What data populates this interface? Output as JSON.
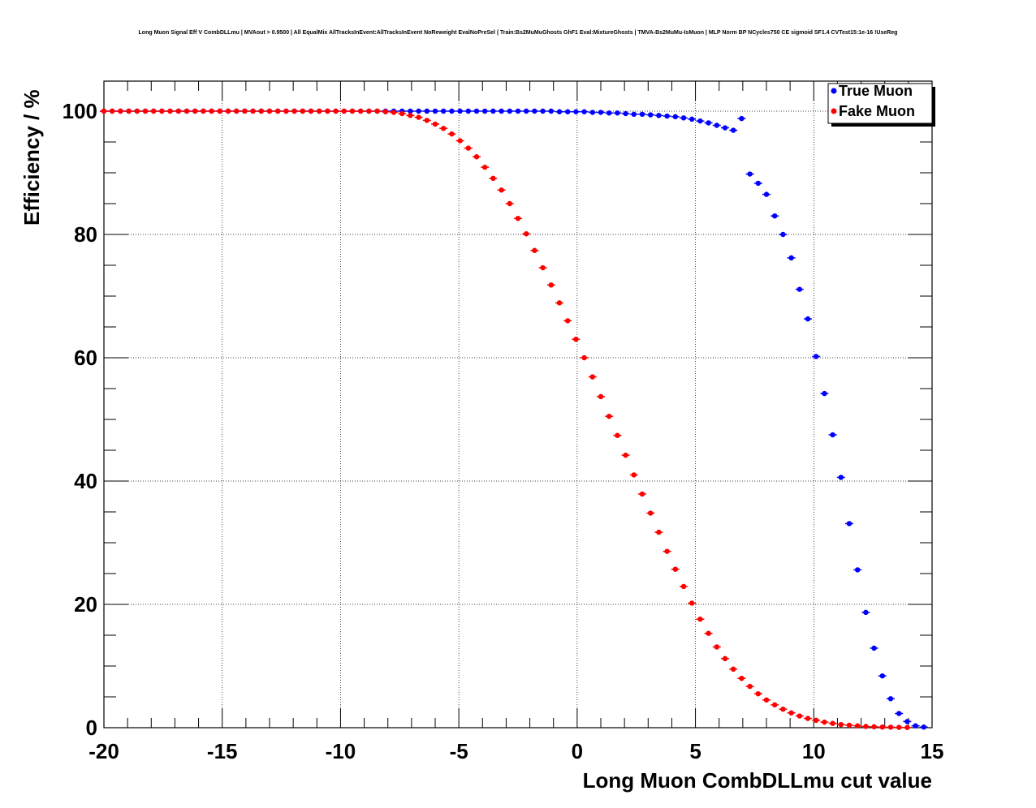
{
  "chart_data": {
    "type": "scatter",
    "title": "Long Muon Signal Eff V CombDLLmu | MVAout > 0.9500 | All EqualMix AllTracksInEvent:AllTracksInEvent NoReweight EvalNoPreSel | Train:Bs2MuMuGhosts GhF1 Eval:MixtureGhosts | TMVA-Bs2MuMu-IsMuon | MLP Norm BP NCycles750 CE sigmoid SF1.4 CVTest15:1e-16 !UseReg",
    "xlabel": "Long Muon CombDLLmu cut value",
    "ylabel": "Efficiency / %",
    "xlim": [
      -20,
      15
    ],
    "ylim": [
      0,
      105
    ],
    "x_ticks": [
      "-20",
      "-15",
      "-10",
      "-5",
      "0",
      "5",
      "10",
      "15"
    ],
    "y_ticks": [
      "0",
      "20",
      "40",
      "60",
      "80",
      "100"
    ],
    "grid": true,
    "legend_position": "top-right",
    "series": [
      {
        "name": "True Muon",
        "color": "#0000ff",
        "x": [
          -20,
          -19.65,
          -19.3,
          -18.95,
          -18.6,
          -18.25,
          -17.9,
          -17.55,
          -17.2,
          -16.85,
          -16.5,
          -16.15,
          -15.8,
          -15.45,
          -15.1,
          -14.75,
          -14.4,
          -14.05,
          -13.7,
          -13.35,
          -13,
          -12.65,
          -12.3,
          -11.95,
          -11.6,
          -11.25,
          -10.9,
          -10.55,
          -10.2,
          -9.85,
          -9.5,
          -9.15,
          -8.8,
          -8.45,
          -8.1,
          -7.75,
          -7.4,
          -7.05,
          -6.7,
          -6.35,
          -6,
          -5.65,
          -5.3,
          -4.95,
          -4.6,
          -4.25,
          -3.9,
          -3.55,
          -3.2,
          -2.85,
          -2.5,
          -2.15,
          -1.8,
          -1.45,
          -1.1,
          -0.75,
          -0.4,
          -0.05,
          0.3,
          0.65,
          1,
          1.35,
          1.7,
          2.05,
          2.4,
          2.75,
          3.1,
          3.45,
          3.8,
          4.15,
          4.5,
          4.85,
          5.2,
          5.55,
          5.9,
          6.25,
          6.6,
          6.95,
          7.3,
          7.65,
          8,
          8.35,
          8.7,
          9.05,
          9.4,
          9.75,
          10.1,
          10.45,
          10.8,
          11.15,
          11.5,
          11.85,
          12.2,
          12.55,
          12.9,
          13.25,
          13.6,
          13.95,
          14.3,
          14.65
        ],
        "y": [
          100,
          100,
          100,
          100,
          100,
          100,
          100,
          100,
          100,
          100,
          100,
          100,
          100,
          100,
          100,
          100,
          100,
          100,
          100,
          100,
          100,
          100,
          100,
          100,
          100,
          100,
          100,
          100,
          100,
          100,
          100,
          100,
          100,
          100,
          100,
          100,
          100,
          100,
          100,
          100,
          100,
          100,
          100,
          100,
          100,
          100,
          100,
          100,
          100,
          100,
          100,
          100,
          100,
          100,
          100,
          99.9,
          99.9,
          99.9,
          99.9,
          99.8,
          99.8,
          99.7,
          99.7,
          99.6,
          99.5,
          99.5,
          99.4,
          99.3,
          99.2,
          99.1,
          98.9,
          98.7,
          98.4,
          98.1,
          97.7,
          97.3,
          96.9,
          98.8,
          89.8,
          88.3,
          86.5,
          83,
          80,
          76.2,
          71.1,
          66.3,
          60.2,
          54.2,
          47.5,
          40.6,
          33.1,
          25.6,
          18.7,
          12.9,
          8.4,
          4.7,
          2.3,
          1,
          0.3,
          0.1
        ]
      },
      {
        "name": "Fake Muon",
        "color": "#ff0000",
        "x": [
          -20,
          -19.65,
          -19.3,
          -18.95,
          -18.6,
          -18.25,
          -17.9,
          -17.55,
          -17.2,
          -16.85,
          -16.5,
          -16.15,
          -15.8,
          -15.45,
          -15.1,
          -14.75,
          -14.4,
          -14.05,
          -13.7,
          -13.35,
          -13,
          -12.65,
          -12.3,
          -11.95,
          -11.6,
          -11.25,
          -10.9,
          -10.55,
          -10.2,
          -9.85,
          -9.5,
          -9.15,
          -8.8,
          -8.45,
          -8.1,
          -7.75,
          -7.4,
          -7.05,
          -6.7,
          -6.35,
          -6,
          -5.65,
          -5.3,
          -4.95,
          -4.6,
          -4.25,
          -3.9,
          -3.55,
          -3.2,
          -2.85,
          -2.5,
          -2.15,
          -1.8,
          -1.45,
          -1.1,
          -0.75,
          -0.4,
          -0.05,
          0.3,
          0.65,
          1,
          1.35,
          1.7,
          2.05,
          2.4,
          2.75,
          3.1,
          3.45,
          3.8,
          4.15,
          4.5,
          4.85,
          5.2,
          5.55,
          5.9,
          6.25,
          6.6,
          6.95,
          7.3,
          7.65,
          8,
          8.35,
          8.7,
          9.05,
          9.4,
          9.75,
          10.1,
          10.45,
          10.8,
          11.15,
          11.5,
          11.85,
          12.2,
          12.55,
          12.9,
          13.25,
          13.6,
          13.95
        ],
        "y": [
          100,
          100,
          100,
          100,
          100,
          100,
          100,
          100,
          100,
          100,
          100,
          100,
          100,
          100,
          100,
          100,
          100,
          100,
          100,
          100,
          100,
          100,
          100,
          100,
          100,
          100,
          100,
          100,
          100,
          100,
          100,
          100,
          100,
          100,
          99.9,
          99.8,
          99.6,
          99.3,
          99,
          98.5,
          97.9,
          97.2,
          96.3,
          95.2,
          94,
          92.6,
          90.9,
          89.1,
          87.2,
          85,
          82.6,
          80.1,
          77.4,
          74.6,
          71.8,
          68.9,
          66,
          63,
          60,
          56.9,
          53.7,
          50.5,
          47.4,
          44.2,
          41,
          37.9,
          34.8,
          31.7,
          28.6,
          25.7,
          22.9,
          20.2,
          17.6,
          15.3,
          13.1,
          11.2,
          9.5,
          8,
          6.7,
          5.5,
          4.5,
          3.7,
          3,
          2.4,
          1.9,
          1.5,
          1.2,
          0.9,
          0.7,
          0.5,
          0.4,
          0.3,
          0.2,
          0.15,
          0.1,
          0.08,
          0.05,
          0.03
        ]
      }
    ]
  }
}
